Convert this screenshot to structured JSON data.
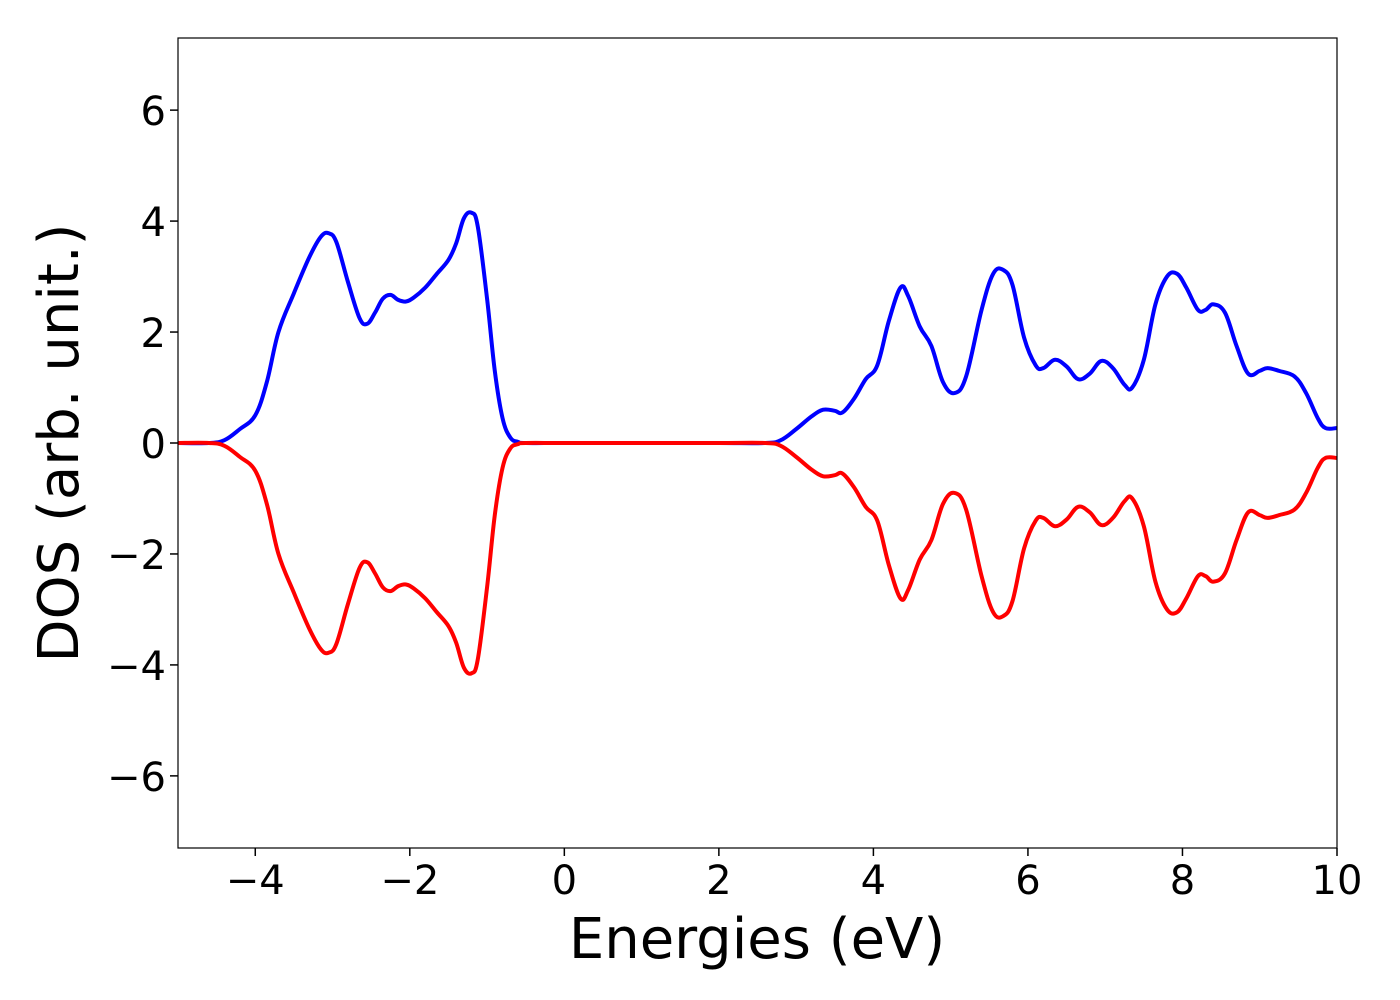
{
  "chart_data": {
    "type": "line",
    "title": "",
    "xlabel": "Energies (eV)",
    "ylabel": "DOS (arb. unit.)",
    "xlim": [
      -5,
      10
    ],
    "ylim": [
      -7.3,
      7.3
    ],
    "xticks": [
      -4,
      -2,
      0,
      2,
      4,
      6,
      8,
      10
    ],
    "xtick_labels": [
      "−4",
      "−2",
      "0",
      "2",
      "4",
      "6",
      "8",
      "10"
    ],
    "yticks": [
      -6,
      -4,
      -2,
      0,
      2,
      4,
      6
    ],
    "ytick_labels": [
      "−6",
      "−4",
      "−2",
      "0",
      "2",
      "4",
      "6"
    ],
    "grid": false,
    "legend": "none",
    "series": [
      {
        "color": "#0000ff",
        "x": [
          -5.0,
          -4.6,
          -4.4,
          -4.2,
          -4.0,
          -3.85,
          -3.7,
          -3.5,
          -3.3,
          -3.15,
          -3.05,
          -2.95,
          -2.8,
          -2.65,
          -2.55,
          -2.45,
          -2.35,
          -2.25,
          -2.15,
          -2.05,
          -1.95,
          -1.8,
          -1.65,
          -1.5,
          -1.4,
          -1.3,
          -1.2,
          -1.12,
          -1.0,
          -0.9,
          -0.8,
          -0.7,
          -0.6,
          -0.5,
          0.0,
          1.0,
          2.0,
          2.6,
          2.8,
          3.0,
          3.2,
          3.35,
          3.5,
          3.6,
          3.75,
          3.9,
          4.05,
          4.2,
          4.35,
          4.45,
          4.6,
          4.75,
          4.9,
          5.05,
          5.2,
          5.4,
          5.55,
          5.68,
          5.8,
          5.95,
          6.1,
          6.2,
          6.35,
          6.5,
          6.65,
          6.8,
          6.95,
          7.1,
          7.25,
          7.35,
          7.5,
          7.65,
          7.8,
          7.93,
          8.05,
          8.2,
          8.3,
          8.4,
          8.55,
          8.7,
          8.85,
          9.0,
          9.1,
          9.25,
          9.45,
          9.6,
          9.75,
          9.85,
          10.0
        ],
        "values": [
          0.0,
          0.0,
          0.05,
          0.25,
          0.5,
          1.1,
          2.0,
          2.7,
          3.35,
          3.72,
          3.78,
          3.62,
          2.9,
          2.25,
          2.15,
          2.35,
          2.6,
          2.67,
          2.58,
          2.55,
          2.62,
          2.8,
          3.05,
          3.3,
          3.6,
          4.05,
          4.15,
          3.9,
          2.6,
          1.3,
          0.45,
          0.1,
          0.02,
          0.0,
          0.0,
          0.0,
          0.0,
          0.0,
          0.05,
          0.25,
          0.48,
          0.6,
          0.58,
          0.55,
          0.8,
          1.15,
          1.4,
          2.2,
          2.8,
          2.65,
          2.1,
          1.75,
          1.1,
          0.9,
          1.2,
          2.4,
          3.05,
          3.12,
          2.85,
          1.9,
          1.4,
          1.35,
          1.5,
          1.38,
          1.15,
          1.25,
          1.48,
          1.35,
          1.05,
          1.0,
          1.5,
          2.5,
          3.0,
          3.05,
          2.8,
          2.4,
          2.4,
          2.5,
          2.35,
          1.75,
          1.25,
          1.3,
          1.35,
          1.3,
          1.2,
          0.9,
          0.45,
          0.27,
          0.27
        ]
      },
      {
        "color": "#ff0000",
        "x": [
          -5.0,
          -4.6,
          -4.4,
          -4.2,
          -4.0,
          -3.85,
          -3.7,
          -3.5,
          -3.3,
          -3.15,
          -3.05,
          -2.95,
          -2.8,
          -2.65,
          -2.55,
          -2.45,
          -2.35,
          -2.25,
          -2.15,
          -2.05,
          -1.95,
          -1.8,
          -1.65,
          -1.5,
          -1.4,
          -1.3,
          -1.2,
          -1.12,
          -1.0,
          -0.9,
          -0.8,
          -0.7,
          -0.6,
          -0.5,
          0.0,
          1.0,
          2.0,
          2.6,
          2.8,
          3.0,
          3.2,
          3.35,
          3.5,
          3.6,
          3.75,
          3.9,
          4.05,
          4.2,
          4.35,
          4.45,
          4.6,
          4.75,
          4.9,
          5.05,
          5.2,
          5.4,
          5.55,
          5.68,
          5.8,
          5.95,
          6.1,
          6.2,
          6.35,
          6.5,
          6.65,
          6.8,
          6.95,
          7.1,
          7.25,
          7.35,
          7.5,
          7.65,
          7.8,
          7.93,
          8.05,
          8.2,
          8.3,
          8.4,
          8.55,
          8.7,
          8.85,
          9.0,
          9.1,
          9.25,
          9.45,
          9.6,
          9.75,
          9.85,
          10.0
        ],
        "values": [
          0.0,
          0.0,
          -0.05,
          -0.25,
          -0.5,
          -1.1,
          -2.0,
          -2.7,
          -3.35,
          -3.72,
          -3.78,
          -3.62,
          -2.9,
          -2.25,
          -2.15,
          -2.35,
          -2.6,
          -2.67,
          -2.58,
          -2.55,
          -2.62,
          -2.8,
          -3.05,
          -3.3,
          -3.6,
          -4.05,
          -4.15,
          -3.9,
          -2.6,
          -1.3,
          -0.45,
          -0.1,
          -0.02,
          0.0,
          0.0,
          0.0,
          0.0,
          0.0,
          -0.05,
          -0.25,
          -0.48,
          -0.6,
          -0.58,
          -0.55,
          -0.8,
          -1.15,
          -1.4,
          -2.2,
          -2.8,
          -2.65,
          -2.1,
          -1.75,
          -1.1,
          -0.9,
          -1.2,
          -2.4,
          -3.05,
          -3.12,
          -2.85,
          -1.9,
          -1.4,
          -1.35,
          -1.5,
          -1.38,
          -1.15,
          -1.25,
          -1.48,
          -1.35,
          -1.05,
          -1.0,
          -1.5,
          -2.5,
          -3.0,
          -3.05,
          -2.8,
          -2.4,
          -2.4,
          -2.5,
          -2.35,
          -1.75,
          -1.25,
          -1.3,
          -1.35,
          -1.3,
          -1.2,
          -0.9,
          -0.45,
          -0.27,
          -0.27
        ]
      }
    ]
  }
}
